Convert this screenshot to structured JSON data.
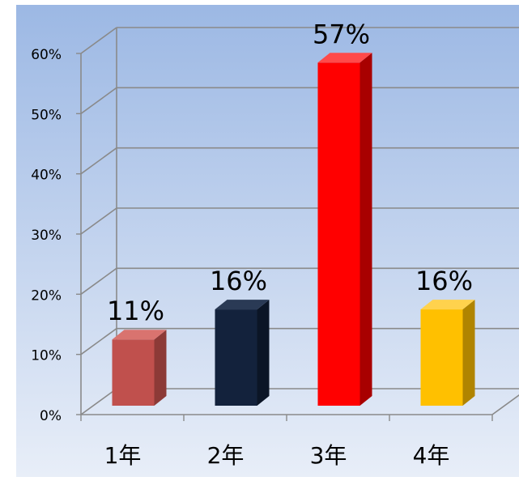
{
  "chart_data": {
    "type": "bar",
    "title": "",
    "xlabel": "",
    "ylabel": "",
    "categories": [
      "1年",
      "2年",
      "3年",
      "4年"
    ],
    "values": [
      11,
      16,
      57,
      16
    ],
    "value_labels": [
      "11%",
      "16%",
      "57%",
      "16%"
    ],
    "ylim": [
      0,
      60
    ],
    "yticks": [
      "0%",
      "10%",
      "20%",
      "30%",
      "40%",
      "50%",
      "60%"
    ],
    "grid": true,
    "legend": "none",
    "colors": [
      {
        "front": "#C0504D",
        "side": "#8C3A37",
        "top": "#D9736F"
      },
      {
        "front": "#13223C",
        "side": "#0B1526",
        "top": "#2A3A55"
      },
      {
        "front": "#FF0000",
        "side": "#A80000",
        "top": "#FF4A4A"
      },
      {
        "front": "#FFC000",
        "side": "#B08400",
        "top": "#FFD24D"
      }
    ],
    "background": {
      "top": "#9CB8E4",
      "bottom": "#E8EEF8"
    }
  }
}
